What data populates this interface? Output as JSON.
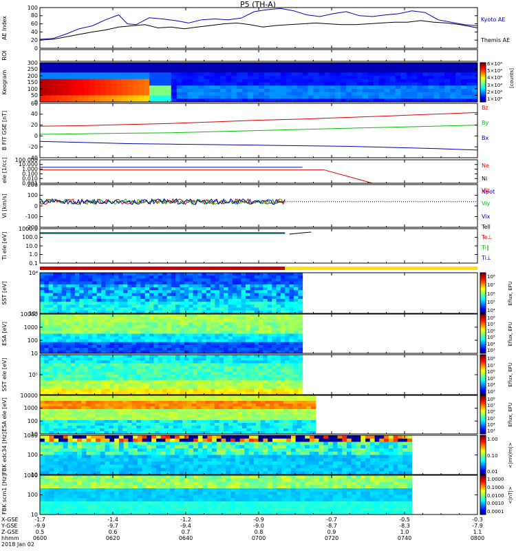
{
  "title": "P5 (TH-A)",
  "colors": {
    "red": "#e00000",
    "green": "#00c000",
    "blue": "#0000c0",
    "black": "#000000"
  },
  "chart_data": [
    {
      "type": "line",
      "id": "ae",
      "ylabel": "AE Index",
      "ylim": [
        0,
        100
      ],
      "yticks": [
        "100",
        "80",
        "60",
        "40",
        "20",
        "0"
      ],
      "legend": [
        "Kyoto AE",
        "Themis AE"
      ],
      "series": [
        {
          "name": "Kyoto AE",
          "color": "blue",
          "x": [
            0,
            0.03,
            0.06,
            0.09,
            0.12,
            0.15,
            0.18,
            0.2,
            0.22,
            0.25,
            0.28,
            0.31,
            0.34,
            0.37,
            0.4,
            0.43,
            0.46,
            0.49,
            0.52,
            0.55,
            0.58,
            0.61,
            0.64,
            0.67,
            0.7,
            0.73,
            0.76,
            0.79,
            0.82,
            0.85,
            0.88,
            0.91,
            0.94,
            0.97,
            1
          ],
          "values": [
            22,
            24,
            35,
            48,
            55,
            70,
            82,
            60,
            58,
            75,
            72,
            68,
            62,
            70,
            72,
            70,
            74,
            90,
            95,
            98,
            92,
            82,
            78,
            85,
            90,
            80,
            78,
            82,
            85,
            92,
            88,
            70,
            64,
            58,
            55
          ]
        },
        {
          "name": "Themis AE",
          "color": "black",
          "x": [
            0,
            0.03,
            0.06,
            0.09,
            0.12,
            0.15,
            0.18,
            0.21,
            0.24,
            0.27,
            0.3,
            0.33,
            0.36,
            0.39,
            0.42,
            0.45,
            0.48,
            0.51,
            0.54,
            0.57,
            0.6,
            0.63,
            0.66,
            0.69,
            0.72,
            0.75,
            0.78,
            0.81,
            0.84,
            0.87,
            0.9,
            0.93,
            0.96,
            1
          ],
          "values": [
            20,
            22,
            28,
            34,
            40,
            45,
            52,
            55,
            58,
            50,
            52,
            48,
            52,
            56,
            60,
            62,
            58,
            52,
            56,
            58,
            60,
            62,
            60,
            58,
            58,
            60,
            62,
            64,
            64,
            68,
            64,
            62,
            58,
            50
          ]
        }
      ]
    },
    {
      "type": "bar",
      "id": "roi",
      "ylabel": "ROI",
      "values": []
    },
    {
      "type": "heatmap",
      "id": "keogram",
      "ylabel": "Keogram",
      "ylim": [
        0,
        300
      ],
      "yticks": [
        "300",
        "250",
        "200",
        "150",
        "100",
        "50",
        "0"
      ],
      "colorbar": {
        "label": "[counts]",
        "ticks": [
          "6×10⁴",
          "5×10⁴",
          "4×10⁴",
          "3×10⁴",
          "2×10⁴",
          "1×10⁴"
        ]
      }
    },
    {
      "type": "line",
      "id": "bfield",
      "ylabel": "B FIT GSE [nT]",
      "ylim": [
        -40,
        60
      ],
      "yticks": [
        "60",
        "40",
        "20",
        "0",
        "-20",
        "-40"
      ],
      "legend": [
        "Bz",
        "By",
        "Bx"
      ],
      "series": [
        {
          "name": "Bz",
          "color": "red",
          "x": [
            0,
            0.1,
            0.2,
            0.3,
            0.4,
            0.5,
            0.6,
            0.7,
            0.8,
            0.9,
            1
          ],
          "values": [
            18,
            19,
            21,
            23,
            26,
            29,
            31,
            34,
            37,
            40,
            43
          ]
        },
        {
          "name": "By",
          "color": "green",
          "x": [
            0,
            0.1,
            0.2,
            0.3,
            0.4,
            0.5,
            0.6,
            0.7,
            0.8,
            0.9,
            1
          ],
          "values": [
            3,
            4,
            5,
            6,
            8,
            10,
            12,
            14,
            16,
            18,
            20
          ]
        },
        {
          "name": "Bx",
          "color": "blue",
          "x": [
            0,
            0.1,
            0.2,
            0.3,
            0.4,
            0.5,
            0.6,
            0.7,
            0.8,
            0.9,
            1
          ],
          "values": [
            -10,
            -12,
            -14,
            -15,
            -16,
            -17,
            -18,
            -19,
            -21,
            -23,
            -26
          ]
        }
      ]
    },
    {
      "type": "line",
      "id": "density",
      "ylabel": "eIe [1/cc]",
      "yticks": [
        "100.000",
        "10.000",
        "1.000",
        "0.100",
        "0.010",
        "0.001"
      ],
      "legend": [
        "Ne",
        "Ni",
        "Npot"
      ],
      "series": [
        {
          "name": "Npot",
          "color": "blue",
          "x": [
            0,
            0.6
          ],
          "values": [
            2.5,
            2.5
          ]
        },
        {
          "name": "Ne",
          "color": "red",
          "x": [
            0,
            0.6,
            0.65,
            0.76
          ],
          "values": [
            0.7,
            0.7,
            0.7,
            0.001
          ]
        }
      ]
    },
    {
      "type": "line",
      "id": "velocity",
      "ylabel": "Vi [km/s]",
      "ylim": [
        -300,
        200
      ],
      "yticks": [
        "200",
        "100",
        "0",
        "-100",
        "-200"
      ],
      "legend": [
        "Viz",
        "Viy",
        "Vix"
      ]
    },
    {
      "type": "line",
      "id": "temperature",
      "ylabel": "Ti eIe [eV]",
      "yticks": [
        "1000.0",
        "100.0",
        "10.0",
        "1.0",
        "0.1"
      ],
      "legend": [
        "Tell",
        "Te⊥",
        "Ti∥",
        "Ti⊥"
      ]
    },
    {
      "type": "heatmap",
      "id": "sst1",
      "ylabel": "SST [eV]",
      "yticks": [
        "10⁴",
        "10²"
      ],
      "colorbar": {
        "label": "Eflux, EFU",
        "ticks": [
          "10⁸",
          "10⁷",
          "10⁶",
          "10⁵",
          "10⁴"
        ]
      }
    },
    {
      "type": "heatmap",
      "id": "esa1",
      "ylabel": "ESA [eV]",
      "yticks": [
        "10000",
        "1000",
        "100",
        "10"
      ],
      "colorbar": {
        "label": "Eflux, EFU",
        "ticks": [
          "10⁸",
          "10⁷",
          "10⁶",
          "10⁵",
          "10⁴",
          "10³"
        ]
      }
    },
    {
      "type": "heatmap",
      "id": "sst2",
      "ylabel": "SST eIe [eV]",
      "yticks": [
        "10⁵"
      ],
      "colorbar": {
        "label": "Eflux, EFU",
        "ticks": [
          "10⁸",
          "10⁷",
          "10⁶",
          "10⁵",
          "10⁴",
          "10³"
        ]
      }
    },
    {
      "type": "heatmap",
      "id": "esa2",
      "ylabel": "ESA eIe [eV]",
      "yticks": [
        "10000",
        "1000",
        "100",
        "10"
      ],
      "colorbar": {
        "label": "Eflux, EFU",
        "ticks": [
          "10⁸",
          "10⁷",
          "10⁶",
          "10⁵",
          "10⁴",
          "10³"
        ]
      }
    },
    {
      "type": "heatmap",
      "id": "fbk1",
      "ylabel": "FBK edc34 [Hz]",
      "yticks": [
        "1000",
        "100",
        "10"
      ],
      "colorbar": {
        "label": "<|mV/m|>",
        "ticks": [
          "1.00",
          "0.10",
          "0.01"
        ]
      }
    },
    {
      "type": "heatmap",
      "id": "fbk2",
      "ylabel": "FBK scm1 [Hz]",
      "yticks": [
        "1000",
        "100",
        "10"
      ],
      "colorbar": {
        "label": "<|nT|>",
        "ticks": [
          "1.0000",
          "0.1000",
          "0.0100",
          "0.0010",
          "0.0001"
        ]
      }
    }
  ],
  "footer": {
    "row_labels": [
      "X-GSE",
      "Y-GSE",
      "Z-GSE",
      "hhmm",
      "2018 Jan 02"
    ],
    "columns": [
      [
        "-1.7",
        "-9.9",
        "0.5",
        "0600"
      ],
      [
        "-1.4",
        "-9.7",
        "0.6",
        "0620"
      ],
      [
        "-1.2",
        "-9.4",
        "0.7",
        "0640"
      ],
      [
        "-0.9",
        "-9.0",
        "0.8",
        "0700"
      ],
      [
        "-0.7",
        "-8.7",
        "0.9",
        "0720"
      ],
      [
        "-0.5",
        "-8.3",
        "1.0",
        "0740"
      ],
      [
        "-0.3",
        "-7.9",
        "1.1",
        "0800"
      ]
    ]
  }
}
